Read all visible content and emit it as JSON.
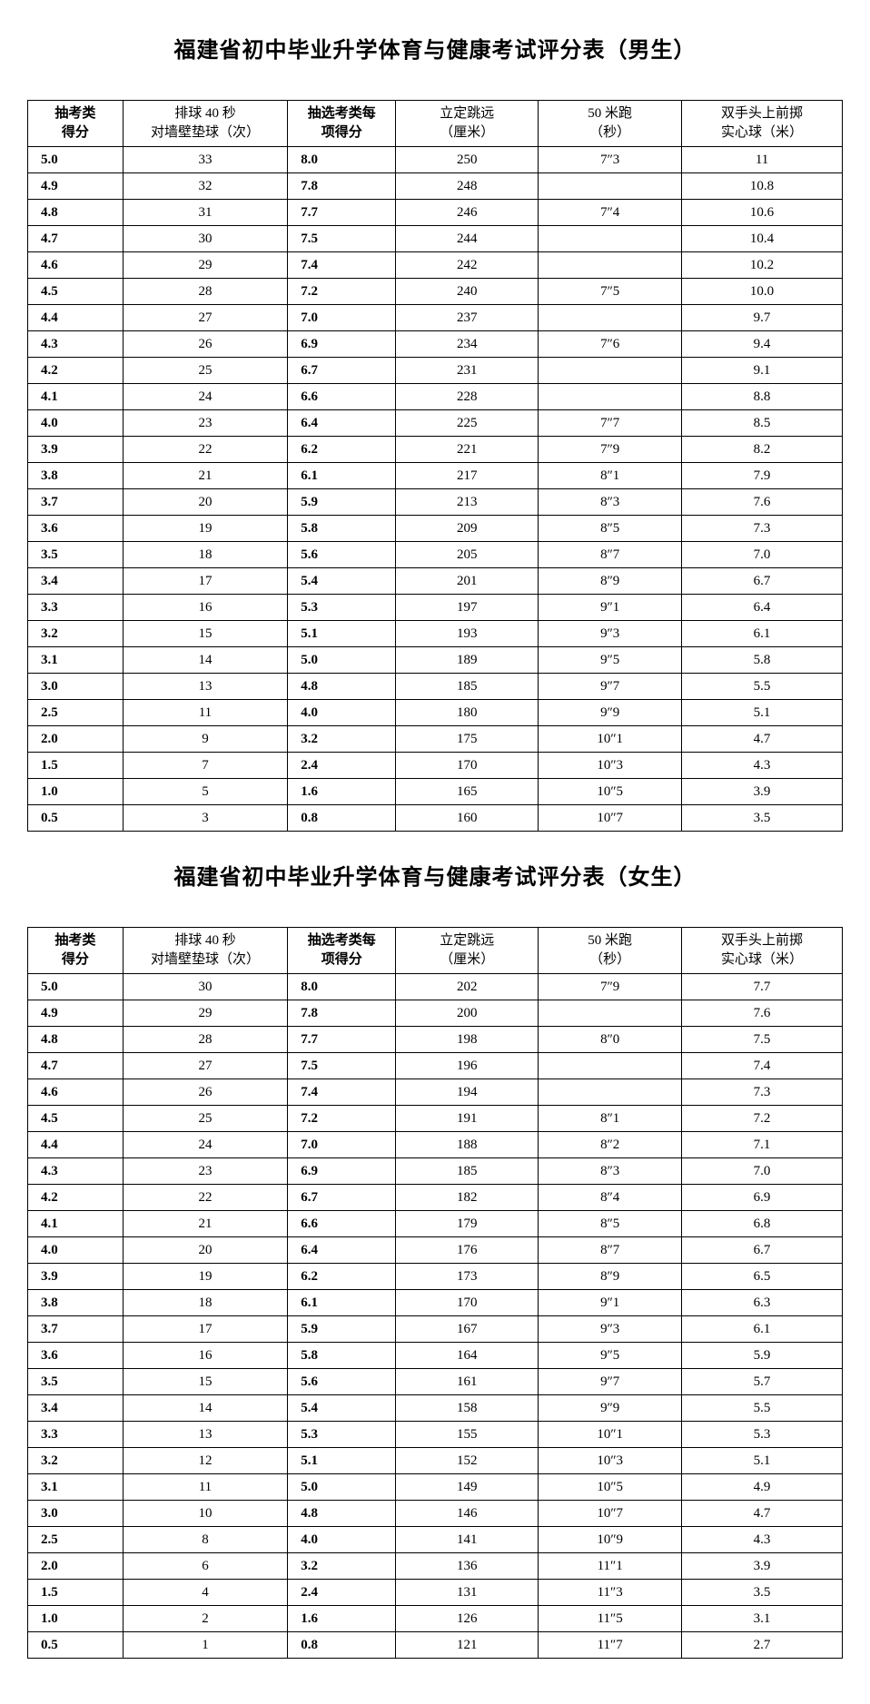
{
  "tables": [
    {
      "title": "福建省初中毕业升学体育与健康考试评分表（男生）",
      "headers": {
        "score1": "抽考类\n得分",
        "volley": "排球 40 秒\n对墙壁垫球（次）",
        "score2": "抽选考类每\n项得分",
        "jump": "立定跳远\n（厘米）",
        "run": "50 米跑\n（秒）",
        "ball": "双手头上前掷\n实心球（米）"
      },
      "rows": [
        [
          "5.0",
          "33",
          "8.0",
          "250",
          "7″3",
          "11"
        ],
        [
          "4.9",
          "32",
          "7.8",
          "248",
          "",
          "10.8"
        ],
        [
          "4.8",
          "31",
          "7.7",
          "246",
          "7″4",
          "10.6"
        ],
        [
          "4.7",
          "30",
          "7.5",
          "244",
          "",
          "10.4"
        ],
        [
          "4.6",
          "29",
          "7.4",
          "242",
          "",
          "10.2"
        ],
        [
          "4.5",
          "28",
          "7.2",
          "240",
          "7″5",
          "10.0"
        ],
        [
          "4.4",
          "27",
          "7.0",
          "237",
          "",
          "9.7"
        ],
        [
          "4.3",
          "26",
          "6.9",
          "234",
          "7″6",
          "9.4"
        ],
        [
          "4.2",
          "25",
          "6.7",
          "231",
          "",
          "9.1"
        ],
        [
          "4.1",
          "24",
          "6.6",
          "228",
          "",
          "8.8"
        ],
        [
          "4.0",
          "23",
          "6.4",
          "225",
          "7″7",
          "8.5"
        ],
        [
          "3.9",
          "22",
          "6.2",
          "221",
          "7″9",
          "8.2"
        ],
        [
          "3.8",
          "21",
          "6.1",
          "217",
          "8″1",
          "7.9"
        ],
        [
          "3.7",
          "20",
          "5.9",
          "213",
          "8″3",
          "7.6"
        ],
        [
          "3.6",
          "19",
          "5.8",
          "209",
          "8″5",
          "7.3"
        ],
        [
          "3.5",
          "18",
          "5.6",
          "205",
          "8″7",
          "7.0"
        ],
        [
          "3.4",
          "17",
          "5.4",
          "201",
          "8″9",
          "6.7"
        ],
        [
          "3.3",
          "16",
          "5.3",
          "197",
          "9″1",
          "6.4"
        ],
        [
          "3.2",
          "15",
          "5.1",
          "193",
          "9″3",
          "6.1"
        ],
        [
          "3.1",
          "14",
          "5.0",
          "189",
          "9″5",
          "5.8"
        ],
        [
          "3.0",
          "13",
          "4.8",
          "185",
          "9″7",
          "5.5"
        ],
        [
          "2.5",
          "11",
          "4.0",
          "180",
          "9″9",
          "5.1"
        ],
        [
          "2.0",
          "9",
          "3.2",
          "175",
          "10″1",
          "4.7"
        ],
        [
          "1.5",
          "7",
          "2.4",
          "170",
          "10″3",
          "4.3"
        ],
        [
          "1.0",
          "5",
          "1.6",
          "165",
          "10″5",
          "3.9"
        ],
        [
          "0.5",
          "3",
          "0.8",
          "160",
          "10″7",
          "3.5"
        ]
      ]
    },
    {
      "title": "福建省初中毕业升学体育与健康考试评分表（女生）",
      "headers": {
        "score1": "抽考类\n得分",
        "volley": "排球 40 秒\n对墙壁垫球（次）",
        "score2": "抽选考类每\n项得分",
        "jump": "立定跳远\n（厘米）",
        "run": "50 米跑\n（秒）",
        "ball": "双手头上前掷\n实心球（米）"
      },
      "rows": [
        [
          "5.0",
          "30",
          "8.0",
          "202",
          "7″9",
          "7.7"
        ],
        [
          "4.9",
          "29",
          "7.8",
          "200",
          "",
          "7.6"
        ],
        [
          "4.8",
          "28",
          "7.7",
          "198",
          "8″0",
          "7.5"
        ],
        [
          "4.7",
          "27",
          "7.5",
          "196",
          "",
          "7.4"
        ],
        [
          "4.6",
          "26",
          "7.4",
          "194",
          "",
          "7.3"
        ],
        [
          "4.5",
          "25",
          "7.2",
          "191",
          "8″1",
          "7.2"
        ],
        [
          "4.4",
          "24",
          "7.0",
          "188",
          "8″2",
          "7.1"
        ],
        [
          "4.3",
          "23",
          "6.9",
          "185",
          "8″3",
          "7.0"
        ],
        [
          "4.2",
          "22",
          "6.7",
          "182",
          "8″4",
          "6.9"
        ],
        [
          "4.1",
          "21",
          "6.6",
          "179",
          "8″5",
          "6.8"
        ],
        [
          "4.0",
          "20",
          "6.4",
          "176",
          "8″7",
          "6.7"
        ],
        [
          "3.9",
          "19",
          "6.2",
          "173",
          "8″9",
          "6.5"
        ],
        [
          "3.8",
          "18",
          "6.1",
          "170",
          "9″1",
          "6.3"
        ],
        [
          "3.7",
          "17",
          "5.9",
          "167",
          "9″3",
          "6.1"
        ],
        [
          "3.6",
          "16",
          "5.8",
          "164",
          "9″5",
          "5.9"
        ],
        [
          "3.5",
          "15",
          "5.6",
          "161",
          "9″7",
          "5.7"
        ],
        [
          "3.4",
          "14",
          "5.4",
          "158",
          "9″9",
          "5.5"
        ],
        [
          "3.3",
          "13",
          "5.3",
          "155",
          "10″1",
          "5.3"
        ],
        [
          "3.2",
          "12",
          "5.1",
          "152",
          "10″3",
          "5.1"
        ],
        [
          "3.1",
          "11",
          "5.0",
          "149",
          "10″5",
          "4.9"
        ],
        [
          "3.0",
          "10",
          "4.8",
          "146",
          "10″7",
          "4.7"
        ],
        [
          "2.5",
          "8",
          "4.0",
          "141",
          "10″9",
          "4.3"
        ],
        [
          "2.0",
          "6",
          "3.2",
          "136",
          "11″1",
          "3.9"
        ],
        [
          "1.5",
          "4",
          "2.4",
          "131",
          "11″3",
          "3.5"
        ],
        [
          "1.0",
          "2",
          "1.6",
          "126",
          "11″5",
          "3.1"
        ],
        [
          "0.5",
          "1",
          "0.8",
          "121",
          "11″7",
          "2.7"
        ]
      ]
    }
  ]
}
